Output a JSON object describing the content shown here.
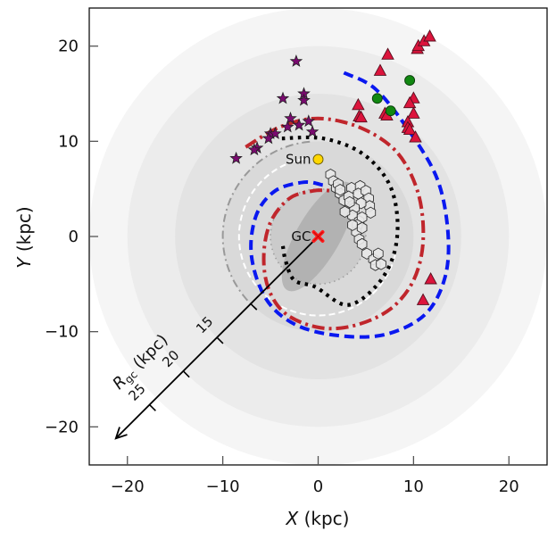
{
  "chart_data": {
    "type": "scatter",
    "title": "",
    "xlabel": "X (kpc)",
    "ylabel": "Y (kpc)",
    "xlabel_italic_part": "X",
    "xlabel_rest": " (kpc)",
    "ylabel_italic_part": "Y",
    "ylabel_rest": " (kpc)",
    "xlim": [
      -24,
      24
    ],
    "ylim": [
      -24,
      24
    ],
    "xticks": [
      -20,
      -10,
      0,
      10,
      20
    ],
    "yticks": [
      -20,
      -10,
      0,
      10,
      20
    ],
    "xtick_labels": [
      "−20",
      "−10",
      "0",
      "10",
      "20"
    ],
    "ytick_labels": [
      "−20",
      "−10",
      "0",
      "10",
      "20"
    ],
    "grid": false,
    "background_disks": [
      {
        "radius_kpc": 24,
        "color": "#f5f5f5"
      },
      {
        "radius_kpc": 20,
        "color": "#ececec"
      },
      {
        "radius_kpc": 15,
        "color": "#e3e3e3"
      },
      {
        "radius_kpc": 10,
        "color": "#d9d9d9"
      },
      {
        "radius_kpc": 5,
        "color": "#cbcbcb"
      }
    ],
    "bar": {
      "center": [
        0,
        0
      ],
      "semi_major_kpc": 6.5,
      "semi_minor_kpc": 2.3,
      "angle_deg": 60,
      "color": "#a9a9a9"
    },
    "annotations": [
      {
        "label": "Sun",
        "x": 0,
        "y": 8.1,
        "marker": "circle",
        "color": "#ffd700"
      },
      {
        "label": "GC",
        "x": 0,
        "y": 0,
        "marker": "x",
        "color": "#ff1a1a"
      }
    ],
    "rgc_axis": {
      "label_main": "R",
      "label_sub": "gc",
      "label_unit": " (kpc)",
      "angle_deg": 225,
      "ticks": [
        {
          "r": 10,
          "label": ""
        },
        {
          "r": 15,
          "label": "15"
        },
        {
          "r": 20,
          "label": "20"
        },
        {
          "r": 25,
          "label": "25"
        }
      ],
      "max_r": 30
    },
    "reference_circles": [
      {
        "name": "gray-dotted-circle",
        "radius_kpc": 5.0,
        "color": "#a0a0a0",
        "style": "dotted",
        "start_deg": 0,
        "end_deg": 360
      },
      {
        "name": "white-dashed-arc",
        "radius_kpc": 8.3,
        "color": "#ffffff",
        "style": "dashed",
        "start_deg": 100,
        "end_deg": 350
      },
      {
        "name": "gray-dashdot-arc",
        "radius_kpc": 10.0,
        "color": "#999999",
        "style": "dashdot",
        "start_deg": 95,
        "end_deg": 230
      }
    ],
    "series": [
      {
        "name": "Outer arm (blue dashed)",
        "type": "line",
        "color": "#0a18f0",
        "style": "dashed",
        "points": [
          [
            2.7,
            17.2
          ],
          [
            6,
            15.5
          ],
          [
            9.6,
            11.0
          ],
          [
            12.5,
            6
          ],
          [
            13.6,
            0.5
          ],
          [
            13.3,
            -4.3
          ],
          [
            11.2,
            -8.2
          ],
          [
            7.0,
            -10.3
          ],
          [
            2.0,
            -10.4
          ],
          [
            -2.5,
            -9.2
          ],
          [
            -5.5,
            -6.5
          ],
          [
            -7.0,
            -2.0
          ],
          [
            -6.5,
            2.2
          ],
          [
            -4.5,
            4.8
          ],
          [
            -1.5,
            5.7
          ],
          [
            0.5,
            5.4
          ]
        ]
      },
      {
        "name": "Perseus arm (red dash-dot)",
        "type": "line",
        "color": "#c0262c",
        "style": "dashdot",
        "points": [
          [
            -7.6,
            9.4
          ],
          [
            -4.0,
            11.5
          ],
          [
            0,
            12.4
          ],
          [
            4.5,
            11.4
          ],
          [
            8.3,
            8.8
          ],
          [
            10.5,
            4.5
          ],
          [
            11.0,
            -0.5
          ],
          [
            10.0,
            -4.6
          ],
          [
            7.6,
            -7.6
          ],
          [
            4.0,
            -9.3
          ],
          [
            0.3,
            -9.6
          ],
          [
            -3.3,
            -8.2
          ],
          [
            -5.2,
            -5.5
          ],
          [
            -5.7,
            -2.0
          ],
          [
            -5.0,
            1.5
          ],
          [
            -3.0,
            4.0
          ],
          [
            -0.5,
            4.8
          ],
          [
            1.5,
            4.8
          ]
        ]
      },
      {
        "name": "Local arm (black dotted)",
        "type": "line",
        "color": "#000000",
        "style": "dotted",
        "points": [
          [
            -3.8,
            10.3
          ],
          [
            0.5,
            10.3
          ],
          [
            4.5,
            8.8
          ],
          [
            7.3,
            5.8
          ],
          [
            8.3,
            2.0
          ],
          [
            7.9,
            -2.0
          ],
          [
            6.0,
            -5.3
          ],
          [
            3.0,
            -7.2
          ],
          [
            -0.3,
            -5.3
          ],
          [
            -2.5,
            -4.6
          ],
          [
            -3.4,
            -2.6
          ],
          [
            -3.7,
            -1.0
          ]
        ]
      },
      {
        "name": "Stars",
        "type": "scatter",
        "marker": "star",
        "color": "#7a0a6f",
        "points": [
          [
            -2.3,
            18.4
          ],
          [
            -3.7,
            14.5
          ],
          [
            -1.5,
            15.0
          ],
          [
            -1.5,
            14.3
          ],
          [
            -2.9,
            12.4
          ],
          [
            -2.0,
            11.7
          ],
          [
            -1.0,
            12.1
          ],
          [
            -3.2,
            11.5
          ],
          [
            -5.0,
            10.8
          ],
          [
            -4.5,
            10.8
          ],
          [
            -5.2,
            10.3
          ],
          [
            -6.4,
            9.3
          ],
          [
            -6.7,
            9.1
          ],
          [
            -0.6,
            11.0
          ],
          [
            -8.6,
            8.2
          ]
        ]
      },
      {
        "name": "Triangles",
        "type": "scatter",
        "marker": "triangle",
        "color": "#dc143c",
        "points": [
          [
            7.3,
            19.1
          ],
          [
            6.5,
            17.4
          ],
          [
            10.4,
            19.7
          ],
          [
            10.5,
            20.0
          ],
          [
            11.1,
            20.5
          ],
          [
            11.7,
            21.0
          ],
          [
            4.2,
            13.8
          ],
          [
            4.3,
            12.6
          ],
          [
            4.5,
            12.5
          ],
          [
            7.0,
            12.9
          ],
          [
            7.2,
            12.7
          ],
          [
            10.0,
            14.5
          ],
          [
            9.6,
            14.0
          ],
          [
            10.0,
            12.9
          ],
          [
            9.4,
            12.0
          ],
          [
            9.4,
            11.4
          ],
          [
            9.6,
            11.2
          ],
          [
            10.2,
            10.4
          ],
          [
            11.8,
            -4.5
          ],
          [
            11.0,
            -6.7
          ]
        ]
      },
      {
        "name": "Circles",
        "type": "scatter",
        "marker": "circle",
        "color": "#118811",
        "points": [
          [
            9.6,
            16.4
          ],
          [
            6.2,
            14.5
          ],
          [
            7.6,
            13.2
          ]
        ]
      },
      {
        "name": "Hexagons",
        "type": "scatter",
        "marker": "hexagon",
        "color": "#e8e8e8",
        "points": [
          [
            1.3,
            6.5
          ],
          [
            1.6,
            5.8
          ],
          [
            1.9,
            5.1
          ],
          [
            2.3,
            4.5
          ],
          [
            2.1,
            5.5
          ],
          [
            2.7,
            3.8
          ],
          [
            2.3,
            4.9
          ],
          [
            3.5,
            5.1
          ],
          [
            3.2,
            4.2
          ],
          [
            4.4,
            5.3
          ],
          [
            4.2,
            4.5
          ],
          [
            5.0,
            4.8
          ],
          [
            5.3,
            4.0
          ],
          [
            5.4,
            3.2
          ],
          [
            5.5,
            2.5
          ],
          [
            4.5,
            3.5
          ],
          [
            3.8,
            3.0
          ],
          [
            3.6,
            2.2
          ],
          [
            4.3,
            1.6
          ],
          [
            4.6,
            2.0
          ],
          [
            4.1,
            1.2
          ],
          [
            4.0,
            0.5
          ],
          [
            4.6,
            0.9
          ],
          [
            4.3,
            -0.3
          ],
          [
            4.6,
            -0.8
          ],
          [
            5.1,
            -1.8
          ],
          [
            5.8,
            -2.4
          ],
          [
            6.0,
            -3.0
          ],
          [
            6.6,
            -2.9
          ],
          [
            6.3,
            -1.8
          ],
          [
            3.3,
            3.6
          ],
          [
            2.8,
            2.6
          ],
          [
            3.6,
            1.2
          ]
        ]
      }
    ]
  }
}
